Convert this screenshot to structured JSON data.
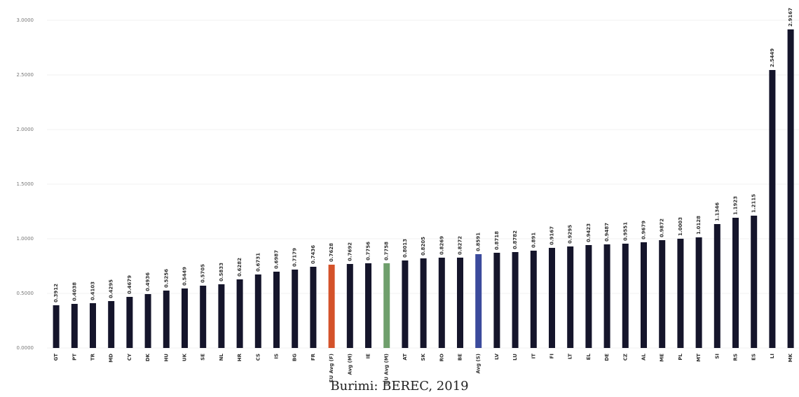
{
  "chart_data": {
    "type": "bar",
    "caption": "Burimi: BEREC, 2019",
    "categories": [
      "GT",
      "PT",
      "TR",
      "MD",
      "CY",
      "DK",
      "HU",
      "UK",
      "SE",
      "NL",
      "HR",
      "CS",
      "IS",
      "BG",
      "FR",
      "EU Avg (F)",
      "Avg (M)",
      "IE",
      "EU Avg (M)",
      "AT",
      "SK",
      "RO",
      "BE",
      "Avg (S)",
      "LV",
      "LU",
      "IT",
      "FI",
      "LT",
      "EL",
      "DE",
      "CZ",
      "AL",
      "ME",
      "PL",
      "MT",
      "SI",
      "RS",
      "ES",
      "LI",
      "MK"
    ],
    "values": [
      0.3912,
      0.4038,
      0.4103,
      0.4295,
      0.4679,
      0.4936,
      0.5256,
      0.5449,
      0.5705,
      0.5833,
      0.6282,
      0.6731,
      0.6987,
      0.7179,
      0.7436,
      0.7628,
      0.7692,
      0.7756,
      0.7758,
      0.8013,
      0.8205,
      0.8269,
      0.8272,
      0.8591,
      0.8718,
      0.8782,
      0.891,
      0.9167,
      0.9295,
      0.9423,
      0.9487,
      0.9551,
      0.9679,
      0.9872,
      1.0003,
      1.0128,
      1.1346,
      1.1923,
      1.2115,
      2.5449,
      2.9167
    ],
    "colors": [
      "#15152b",
      "#15152b",
      "#15152b",
      "#15152b",
      "#15152b",
      "#15152b",
      "#15152b",
      "#15152b",
      "#15152b",
      "#15152b",
      "#15152b",
      "#15152b",
      "#15152b",
      "#15152b",
      "#15152b",
      "#d4522a",
      "#15152b",
      "#15152b",
      "#6f9f6c",
      "#15152b",
      "#15152b",
      "#15152b",
      "#15152b",
      "#3b4a9c",
      "#15152b",
      "#15152b",
      "#15152b",
      "#15152b",
      "#15152b",
      "#15152b",
      "#15152b",
      "#15152b",
      "#15152b",
      "#15152b",
      "#15152b",
      "#15152b",
      "#15152b",
      "#15152b",
      "#15152b",
      "#15152b",
      "#15152b"
    ],
    "ylim": [
      0,
      3
    ],
    "yticks": [
      {
        "value": 0,
        "label": "0.0000"
      },
      {
        "value": 0.5,
        "label": "0.5000"
      },
      {
        "value": 1,
        "label": "1.0000"
      },
      {
        "value": 1.5,
        "label": "1.5000"
      },
      {
        "value": 2,
        "label": "2.0000"
      },
      {
        "value": 2.5,
        "label": "2.5000"
      },
      {
        "value": 3,
        "label": "3.0000"
      }
    ],
    "grid": true
  }
}
